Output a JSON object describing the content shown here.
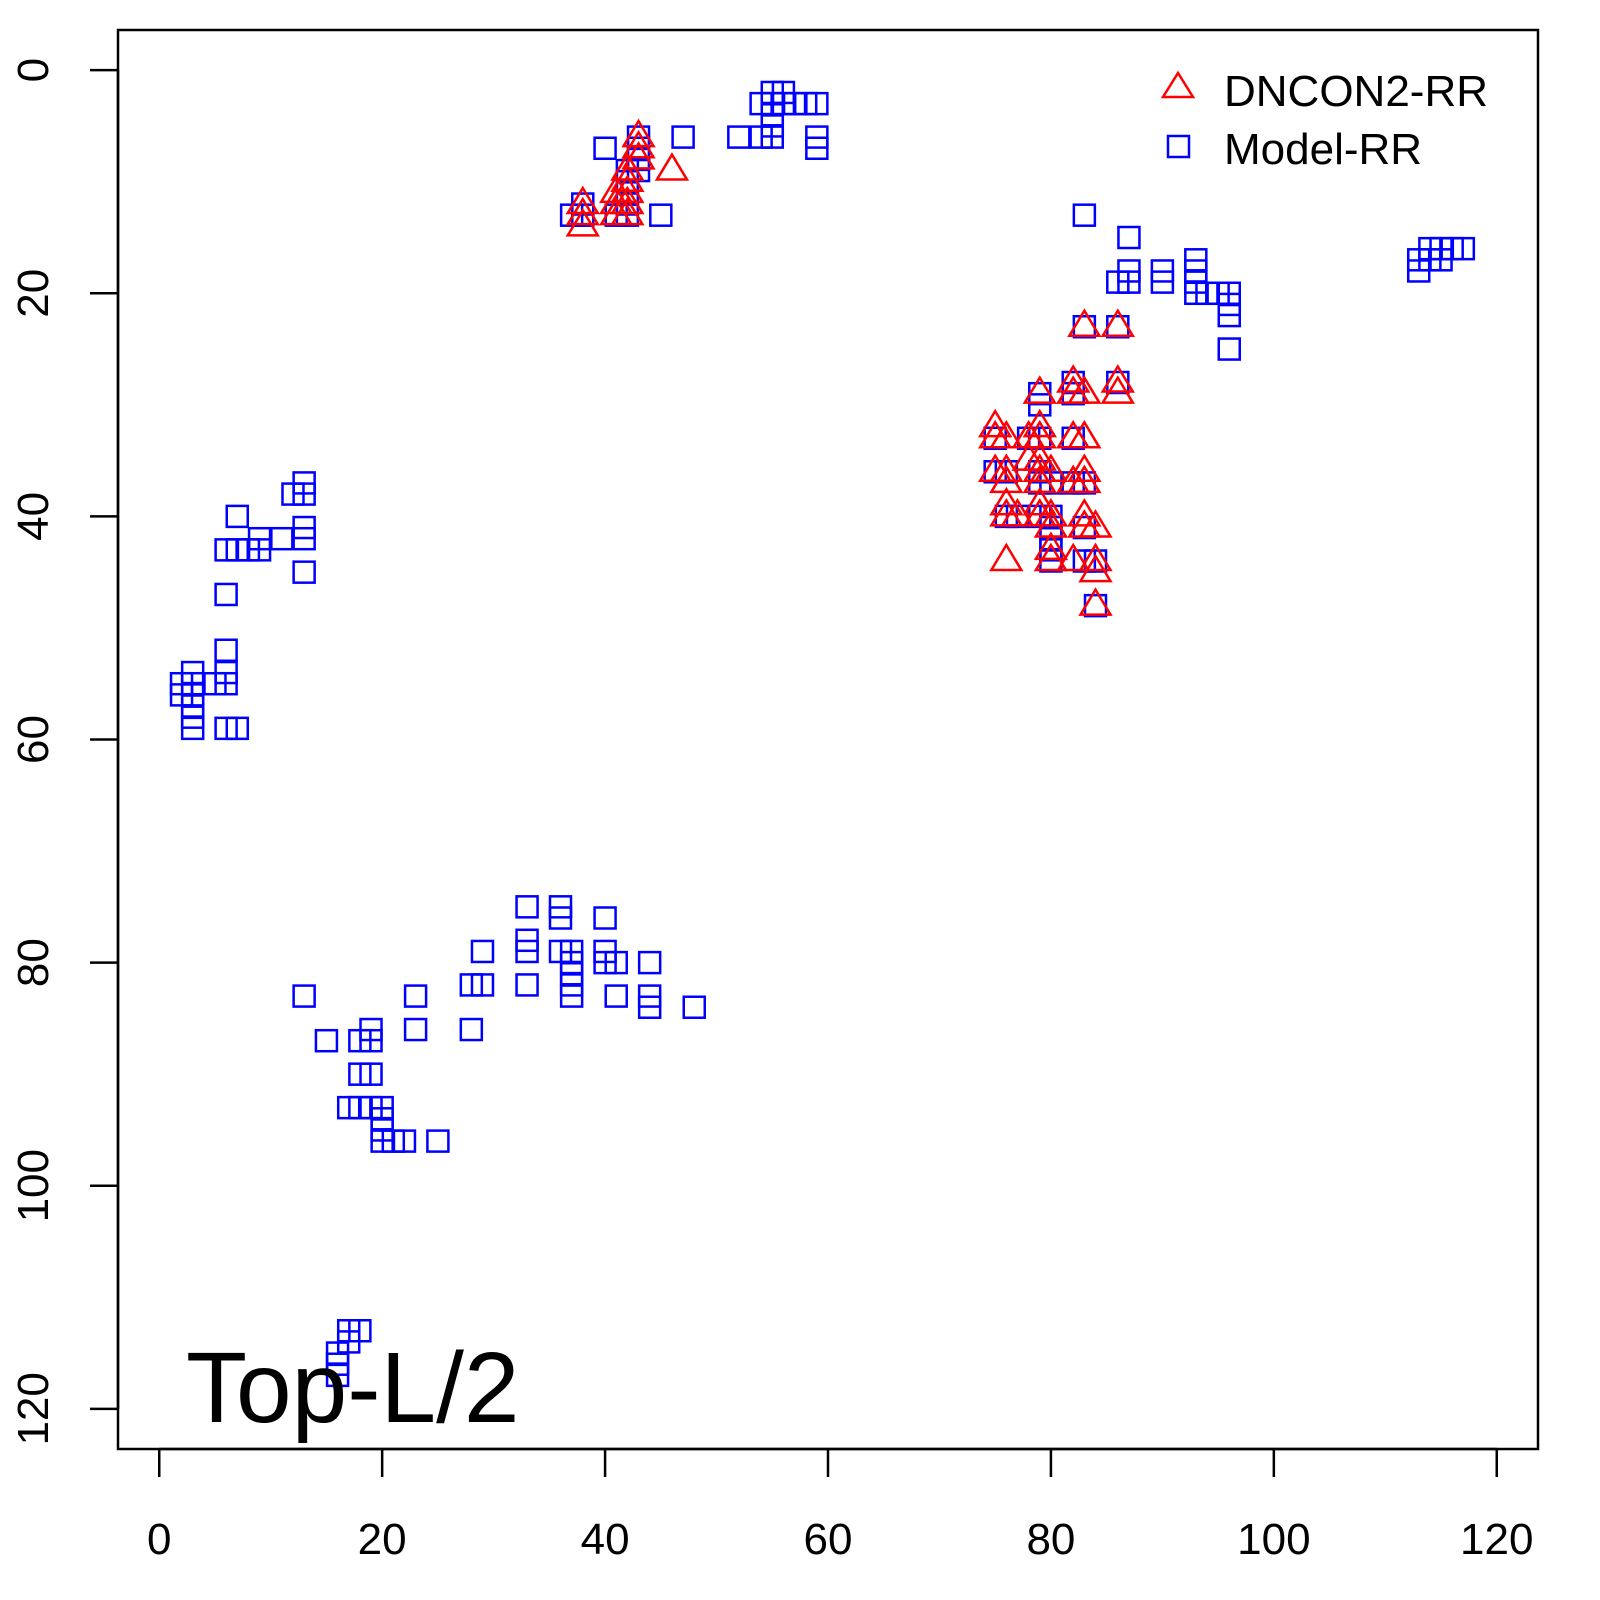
{
  "chart_data": {
    "type": "scatter",
    "title": "",
    "xlabel": "",
    "ylabel": "",
    "xlim": [
      -3.7,
      123.7
    ],
    "ylim": [
      -3.6,
      123.6
    ],
    "y_inverted": true,
    "grid": false,
    "x_ticks": [
      "0",
      "20",
      "40",
      "60",
      "80",
      "100",
      "120"
    ],
    "y_ticks": [
      "0",
      "20",
      "40",
      "60",
      "80",
      "100",
      "120"
    ],
    "legend_position": "top-right",
    "annotation": "Top-L/2",
    "series": [
      {
        "name": "DNCON2-RR",
        "marker": "triangle",
        "color": "#ff0000",
        "points": [
          [
            38,
            12
          ],
          [
            38,
            13
          ],
          [
            38,
            14
          ],
          [
            41,
            11
          ],
          [
            41,
            12
          ],
          [
            41,
            13
          ],
          [
            42,
            13
          ],
          [
            42,
            12
          ],
          [
            42,
            11
          ],
          [
            42,
            10
          ],
          [
            42,
            9
          ],
          [
            43,
            8
          ],
          [
            43,
            7
          ],
          [
            43,
            6
          ],
          [
            46,
            9
          ],
          [
            83,
            23
          ],
          [
            86,
            23
          ],
          [
            86,
            28
          ],
          [
            86,
            29
          ],
          [
            82,
            28
          ],
          [
            82,
            29
          ],
          [
            83,
            29
          ],
          [
            79,
            29
          ],
          [
            82,
            33
          ],
          [
            83,
            33
          ],
          [
            79,
            32
          ],
          [
            79,
            33
          ],
          [
            78,
            33
          ],
          [
            75,
            32
          ],
          [
            75,
            33
          ],
          [
            76,
            33
          ],
          [
            79,
            35
          ],
          [
            79,
            36
          ],
          [
            78,
            35
          ],
          [
            75,
            36
          ],
          [
            76,
            36
          ],
          [
            76,
            37
          ],
          [
            80,
            36
          ],
          [
            79,
            37
          ],
          [
            82,
            37
          ],
          [
            83,
            36
          ],
          [
            83,
            37
          ],
          [
            76,
            39
          ],
          [
            76,
            40
          ],
          [
            77,
            40
          ],
          [
            79,
            39
          ],
          [
            79,
            40
          ],
          [
            80,
            40
          ],
          [
            80,
            41
          ],
          [
            83,
            40
          ],
          [
            83,
            41
          ],
          [
            84,
            41
          ],
          [
            80,
            43
          ],
          [
            80,
            44
          ],
          [
            82,
            44
          ],
          [
            84,
            44
          ],
          [
            84,
            45
          ],
          [
            76,
            44
          ],
          [
            84,
            48
          ]
        ]
      },
      {
        "name": "Model-RR",
        "marker": "square",
        "color": "#0000ff",
        "points": [
          [
            37,
            13
          ],
          [
            38,
            12
          ],
          [
            38,
            13
          ],
          [
            40,
            7
          ],
          [
            41,
            13
          ],
          [
            42,
            13
          ],
          [
            42,
            12
          ],
          [
            42,
            11
          ],
          [
            42,
            10
          ],
          [
            42,
            9
          ],
          [
            43,
            6
          ],
          [
            43,
            7
          ],
          [
            43,
            8
          ],
          [
            43,
            9
          ],
          [
            45,
            13
          ],
          [
            47,
            6
          ],
          [
            52,
            6
          ],
          [
            54,
            3
          ],
          [
            54,
            6
          ],
          [
            55,
            2
          ],
          [
            55,
            3
          ],
          [
            55,
            4
          ],
          [
            55,
            5
          ],
          [
            55,
            6
          ],
          [
            56,
            2
          ],
          [
            56,
            3
          ],
          [
            57,
            3
          ],
          [
            58,
            3
          ],
          [
            59,
            3
          ],
          [
            59,
            6
          ],
          [
            59,
            7
          ],
          [
            83,
            13
          ],
          [
            87,
            15
          ],
          [
            86,
            19
          ],
          [
            87,
            18
          ],
          [
            87,
            19
          ],
          [
            90,
            18
          ],
          [
            90,
            19
          ],
          [
            93,
            17
          ],
          [
            93,
            18
          ],
          [
            93,
            19
          ],
          [
            93,
            20
          ],
          [
            94,
            20
          ],
          [
            95,
            20
          ],
          [
            96,
            20
          ],
          [
            96,
            21
          ],
          [
            96,
            22
          ],
          [
            96,
            25
          ],
          [
            83,
            23
          ],
          [
            86,
            23
          ],
          [
            82,
            28
          ],
          [
            86,
            28
          ],
          [
            82,
            29
          ],
          [
            79,
            29
          ],
          [
            79,
            30
          ],
          [
            78,
            33
          ],
          [
            79,
            33
          ],
          [
            82,
            33
          ],
          [
            75,
            33
          ],
          [
            75,
            36
          ],
          [
            76,
            36
          ],
          [
            79,
            36
          ],
          [
            79,
            37
          ],
          [
            82,
            37
          ],
          [
            83,
            37
          ],
          [
            80,
            37
          ],
          [
            76,
            40
          ],
          [
            77,
            40
          ],
          [
            79,
            40
          ],
          [
            80,
            40
          ],
          [
            80,
            41
          ],
          [
            80,
            42
          ],
          [
            83,
            41
          ],
          [
            80,
            43
          ],
          [
            80,
            44
          ],
          [
            83,
            44
          ],
          [
            84,
            44
          ],
          [
            84,
            48
          ],
          [
            113,
            17
          ],
          [
            113,
            18
          ],
          [
            114,
            16
          ],
          [
            114,
            17
          ],
          [
            115,
            16
          ],
          [
            115,
            17
          ],
          [
            116,
            16
          ],
          [
            117,
            16
          ],
          [
            13,
            37
          ],
          [
            12,
            38
          ],
          [
            13,
            38
          ],
          [
            13,
            41
          ],
          [
            13,
            42
          ],
          [
            11,
            42
          ],
          [
            9,
            42
          ],
          [
            9,
            43
          ],
          [
            8,
            43
          ],
          [
            7,
            43
          ],
          [
            6,
            43
          ],
          [
            7,
            40
          ],
          [
            13,
            45
          ],
          [
            6,
            47
          ],
          [
            6,
            52
          ],
          [
            6,
            54
          ],
          [
            6,
            55
          ],
          [
            5,
            55
          ],
          [
            3,
            54
          ],
          [
            3,
            55
          ],
          [
            2,
            55
          ],
          [
            2,
            56
          ],
          [
            3,
            56
          ],
          [
            3,
            57
          ],
          [
            3,
            58
          ],
          [
            3,
            59
          ],
          [
            6,
            59
          ],
          [
            7,
            59
          ],
          [
            33,
            75
          ],
          [
            36,
            75
          ],
          [
            36,
            76
          ],
          [
            40,
            76
          ],
          [
            33,
            78
          ],
          [
            33,
            79
          ],
          [
            36,
            79
          ],
          [
            37,
            79
          ],
          [
            37,
            80
          ],
          [
            37,
            81
          ],
          [
            37,
            82
          ],
          [
            37,
            83
          ],
          [
            40,
            79
          ],
          [
            40,
            80
          ],
          [
            41,
            80
          ],
          [
            44,
            80
          ],
          [
            41,
            83
          ],
          [
            44,
            83
          ],
          [
            44,
            84
          ],
          [
            48,
            84
          ],
          [
            33,
            82
          ],
          [
            28,
            82
          ],
          [
            29,
            82
          ],
          [
            29,
            79
          ],
          [
            28,
            86
          ],
          [
            23,
            83
          ],
          [
            23,
            86
          ],
          [
            13,
            83
          ],
          [
            15,
            87
          ],
          [
            18,
            87
          ],
          [
            19,
            86
          ],
          [
            19,
            87
          ],
          [
            18,
            90
          ],
          [
            19,
            90
          ],
          [
            17,
            93
          ],
          [
            18,
            93
          ],
          [
            19,
            93
          ],
          [
            20,
            93
          ],
          [
            20,
            94
          ],
          [
            20,
            95
          ],
          [
            20,
            96
          ],
          [
            21,
            96
          ],
          [
            22,
            96
          ],
          [
            25,
            96
          ],
          [
            17,
            113
          ],
          [
            18,
            113
          ],
          [
            17,
            114
          ],
          [
            16,
            115
          ],
          [
            16,
            116
          ],
          [
            16,
            117
          ]
        ]
      }
    ]
  }
}
